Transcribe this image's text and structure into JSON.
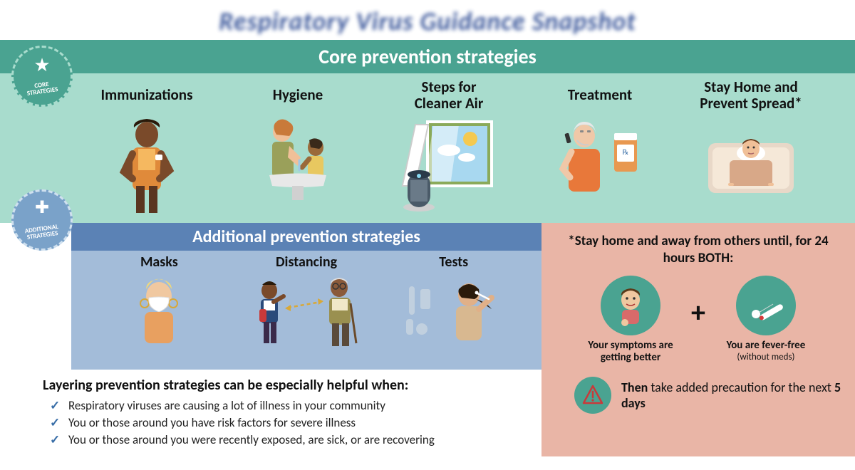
{
  "title": "Respiratory Virus Guidance Snapshot",
  "core": {
    "badge": "CORE\nSTRATEGIES",
    "banner": "Core prevention strategies",
    "items": [
      {
        "label": "Immunizations"
      },
      {
        "label": "Hygiene"
      },
      {
        "label": "Steps for\nCleaner Air"
      },
      {
        "label": "Treatment"
      },
      {
        "label": "Stay Home and\nPrevent Spread*"
      }
    ]
  },
  "additional": {
    "badge": "ADDITIONAL\nSTRATEGIES",
    "banner": "Additional prevention strategies",
    "items": [
      {
        "label": "Masks"
      },
      {
        "label": "Distancing"
      },
      {
        "label": "Tests"
      }
    ]
  },
  "layering": {
    "title": "Layering prevention strategies can be especially helpful when:",
    "bullets": [
      "Respiratory viruses are causing a lot of illness in your community",
      "You or those around you have risk factors for severe illness",
      "You or those around you were recently exposed, are sick, or are recovering"
    ]
  },
  "stayhome": {
    "title": "*Stay home and away from others until, for 24 hours BOTH:",
    "crit1": "Your symptoms are getting better",
    "crit2": "You are fever-free",
    "crit2_sub": "(without meds)",
    "then_bold1": "Then",
    "then_rest": " take added precaution for the next ",
    "then_bold2": "5 days"
  },
  "colors": {
    "core_bg": "#a8dccd",
    "core_banner": "#4aa391",
    "add_banner": "#5b82b5",
    "add_bg": "#a3bcd9",
    "stay_bg": "#e9b5a6",
    "title": "#1f3f8c"
  }
}
